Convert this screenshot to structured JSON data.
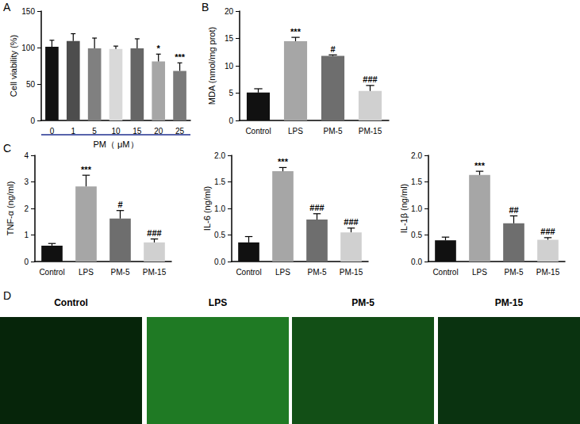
{
  "chart_data": [
    {
      "panel": "A",
      "type": "bar",
      "categories": [
        "0",
        "1",
        "5",
        "10",
        "15",
        "20",
        "25"
      ],
      "values": [
        101,
        109,
        99,
        98,
        99,
        81,
        68
      ],
      "errors": [
        9,
        10,
        14,
        4,
        13,
        10,
        11
      ],
      "annotations": [
        null,
        null,
        null,
        null,
        null,
        "*",
        "***"
      ],
      "colors": [
        "#111111",
        "#4d4d4d",
        "#808080",
        "#d9d9d9",
        "#666666",
        "#a6a6a6",
        "#7a7a7a"
      ],
      "xlabel": "PM（ μM）",
      "ylabel": "Cell viability (%)",
      "ylim": [
        0,
        150
      ],
      "yticks": [
        0,
        50,
        100,
        150
      ],
      "grid": false
    },
    {
      "panel": "B",
      "type": "bar",
      "categories": [
        "Control",
        "LPS",
        "PM-5",
        "PM-15"
      ],
      "values": [
        5.1,
        14.5,
        11.8,
        5.4
      ],
      "errors": [
        0.7,
        0.7,
        0.2,
        1.0
      ],
      "annotations": [
        null,
        "***",
        "#",
        "###"
      ],
      "colors": [
        "#111111",
        "#a6a6a6",
        "#6e6e6e",
        "#d0d0d0"
      ],
      "ylabel": "MDA (nmol/mg prot)",
      "ylim": [
        0,
        20
      ],
      "yticks": [
        0,
        5,
        10,
        15,
        20
      ],
      "grid": false
    },
    {
      "panel": "C",
      "type": "bar",
      "categories": [
        "Control",
        "LPS",
        "PM-5",
        "PM-15"
      ],
      "values": [
        0.6,
        2.83,
        1.62,
        0.72
      ],
      "errors": [
        0.08,
        0.42,
        0.3,
        0.13
      ],
      "annotations": [
        null,
        "***",
        "#",
        "###"
      ],
      "colors": [
        "#111111",
        "#a6a6a6",
        "#6e6e6e",
        "#d0d0d0"
      ],
      "ylabel": "TNF-α (ng/ml)",
      "ylim": [
        0,
        4
      ],
      "yticks": [
        0,
        1,
        2,
        3,
        4
      ],
      "grid": false
    },
    {
      "type": "bar",
      "categories": [
        "Control",
        "LPS",
        "PM-5",
        "PM-15"
      ],
      "values": [
        0.36,
        1.7,
        0.79,
        0.55
      ],
      "errors": [
        0.11,
        0.07,
        0.11,
        0.08
      ],
      "annotations": [
        null,
        "***",
        "###",
        "###"
      ],
      "colors": [
        "#111111",
        "#a6a6a6",
        "#6e6e6e",
        "#d0d0d0"
      ],
      "ylabel": "IL-6 (ng/ml)",
      "ylim": [
        0,
        2
      ],
      "yticks": [
        {
          "value": 0,
          "label": "0.0"
        },
        {
          "value": 0.5,
          "label": "0.5"
        },
        {
          "value": 1,
          "label": "1.0"
        },
        {
          "value": 1.5,
          "label": "1.5"
        },
        {
          "value": 2,
          "label": "2.0"
        }
      ],
      "grid": false
    },
    {
      "type": "bar",
      "categories": [
        "Control",
        "LPS",
        "PM-5",
        "PM-15"
      ],
      "values": [
        0.4,
        1.63,
        0.72,
        0.41
      ],
      "errors": [
        0.06,
        0.07,
        0.14,
        0.04
      ],
      "annotations": [
        null,
        "***",
        "##",
        "###"
      ],
      "colors": [
        "#111111",
        "#a6a6a6",
        "#6e6e6e",
        "#d0d0d0"
      ],
      "ylabel": "IL-1β (ng/ml)",
      "ylim": [
        0,
        2
      ],
      "yticks": [
        {
          "value": 0,
          "label": "0.0"
        },
        {
          "value": 0.5,
          "label": "0.5"
        },
        {
          "value": 1,
          "label": "1.0"
        },
        {
          "value": 1.5,
          "label": "1.5"
        },
        {
          "value": 2,
          "label": "2.0"
        }
      ],
      "grid": false
    }
  ],
  "images": {
    "panel": "D",
    "labels": [
      "Control",
      "LPS",
      "PM-5",
      "PM-15"
    ]
  }
}
